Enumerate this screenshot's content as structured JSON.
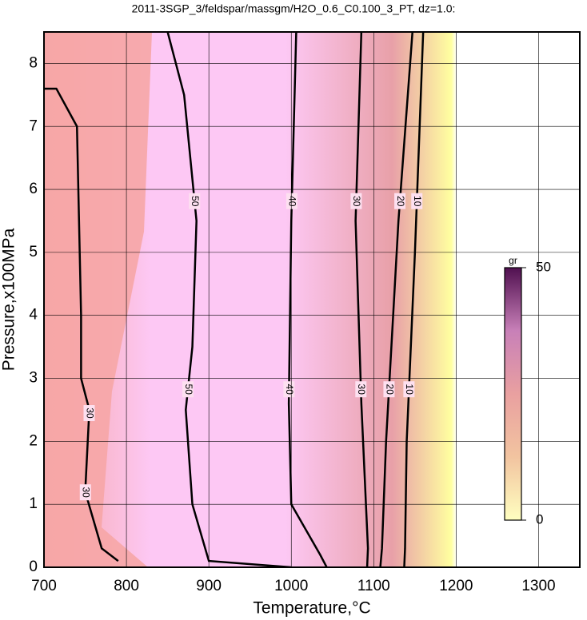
{
  "chart_data": {
    "type": "contour",
    "title": "2011-3SGP_3/feldspar/massgm/H2O_0.6_C0.100_3_PT, dz=1.0:",
    "x_label": "Temperature,°C",
    "y_label": "Pressure,x100MPa",
    "xlim": [
      700,
      1350
    ],
    "ylim": [
      0,
      8.5
    ],
    "xticks": [
      700,
      800,
      900,
      1000,
      1100,
      1200,
      1300
    ],
    "yticks": [
      0,
      1,
      2,
      3,
      4,
      5,
      6,
      7,
      8
    ],
    "grid": true,
    "contours": [
      {
        "level": 10,
        "x": [
          1137,
          1138,
          1140,
          1150,
          1160
        ],
        "y": [
          0,
          0.3,
          2,
          5,
          8.5
        ]
      },
      {
        "level": 20,
        "x": [
          1108,
          1110,
          1115,
          1130,
          1147
        ],
        "y": [
          0,
          0.3,
          2,
          5.5,
          8.5
        ]
      },
      {
        "level": 30,
        "x": [
          1092,
          1093,
          1085,
          1078,
          1085
        ],
        "y": [
          0,
          0.3,
          2.6,
          5.5,
          8.5
        ]
      },
      {
        "level": 40,
        "x": [
          1043,
          1035,
          1000,
          997,
          1000,
          1006
        ],
        "y": [
          0,
          0.2,
          1,
          2.6,
          5.5,
          8.5
        ]
      },
      {
        "level": 50,
        "x": [
          1000,
          900,
          880,
          872,
          880,
          885,
          870,
          850
        ],
        "y": [
          0,
          0.1,
          1,
          2.5,
          3.5,
          5.5,
          7.5,
          8.5
        ]
      },
      {
        "level": 30,
        "x": [
          790,
          770,
          750,
          755,
          745,
          745,
          740,
          715,
          700
        ],
        "y": [
          0.1,
          0.3,
          1.2,
          2.5,
          3,
          4,
          7,
          7.6,
          7.6
        ]
      }
    ],
    "colorbar": {
      "label": "gr",
      "lim": [
        0,
        50
      ],
      "ticks": [
        0,
        50
      ],
      "colors": [
        "#ffffc0",
        "#f2c4a0",
        "#e9a0a0",
        "#c880b8",
        "#501050"
      ]
    },
    "fill_colors": {
      "low": "#f6a6a6",
      "mid": "#fdc8f4",
      "high": "#ffffa0"
    }
  }
}
